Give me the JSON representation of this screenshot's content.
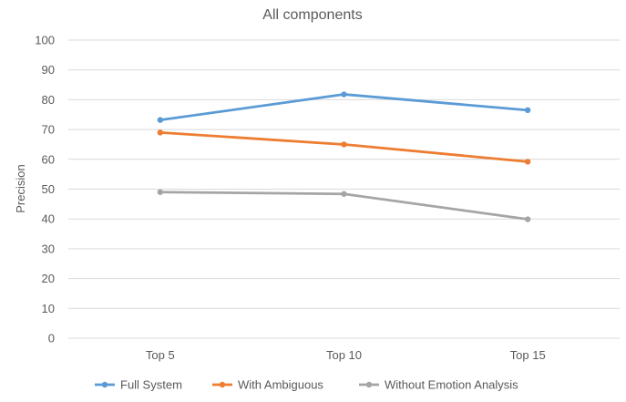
{
  "chart_data": {
    "type": "line",
    "title": "All components",
    "xlabel": "",
    "ylabel": "Precision",
    "categories": [
      "Top 5",
      "Top 10",
      "Top 15"
    ],
    "ylim": [
      0,
      100
    ],
    "yticks": [
      0,
      10,
      20,
      30,
      40,
      50,
      60,
      70,
      80,
      90,
      100
    ],
    "grid": true,
    "legend_position": "bottom",
    "series": [
      {
        "name": "Full System",
        "color": "#5B9BD5",
        "values": [
          73.2,
          81.8,
          76.5
        ]
      },
      {
        "name": "With Ambiguous",
        "color": "#ED7D31",
        "values": [
          69.0,
          65.0,
          59.2
        ]
      },
      {
        "name": "Without Emotion Analysis",
        "color": "#A5A5A5",
        "values": [
          49.0,
          48.4,
          39.9
        ]
      }
    ]
  }
}
